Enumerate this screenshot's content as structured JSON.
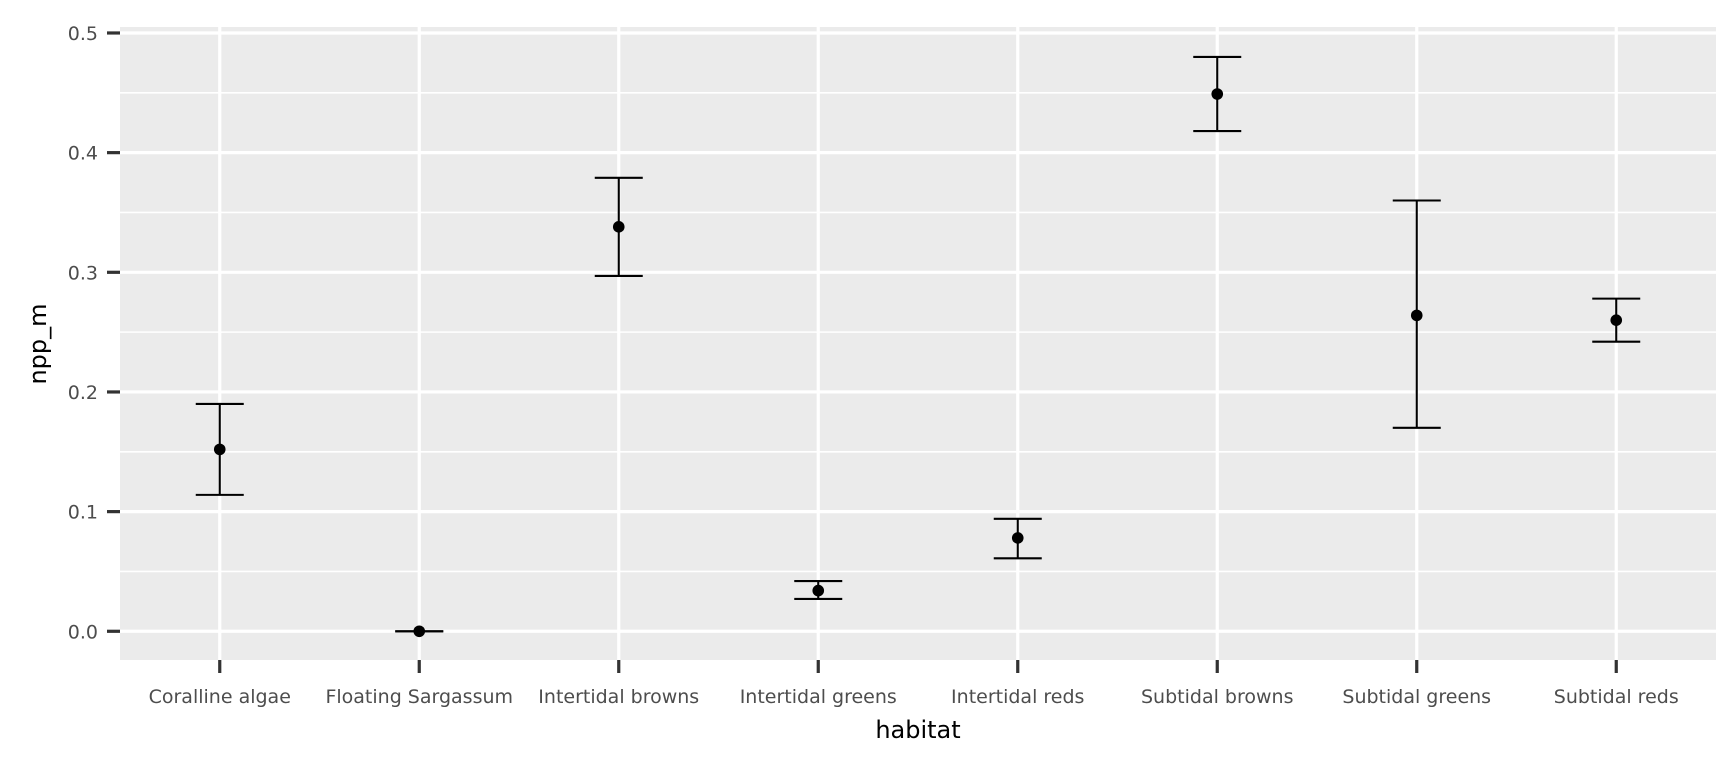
{
  "chart_data": {
    "type": "scatter",
    "xlabel": "habitat",
    "ylabel": "npp_m",
    "categories": [
      "Coralline algae",
      "Floating Sargassum",
      "Intertidal browns",
      "Intertidal greens",
      "Intertidal reds",
      "Subtidal browns",
      "Subtidal greens",
      "Subtidal reds"
    ],
    "points": [
      {
        "mean": 0.152,
        "lower": 0.114,
        "upper": 0.19
      },
      {
        "mean": 0.0,
        "lower": 0.0,
        "upper": 0.0
      },
      {
        "mean": 0.338,
        "lower": 0.297,
        "upper": 0.379
      },
      {
        "mean": 0.034,
        "lower": 0.027,
        "upper": 0.042
      },
      {
        "mean": 0.078,
        "lower": 0.061,
        "upper": 0.094
      },
      {
        "mean": 0.449,
        "lower": 0.418,
        "upper": 0.48
      },
      {
        "mean": 0.264,
        "lower": 0.17,
        "upper": 0.36
      },
      {
        "mean": 0.26,
        "lower": 0.242,
        "upper": 0.278
      }
    ],
    "ylim": [
      -0.024,
      0.505
    ],
    "yticks": [
      0.0,
      0.1,
      0.2,
      0.3,
      0.4,
      0.5
    ],
    "ytick_labels": [
      "0.0",
      "0.1",
      "0.2",
      "0.3",
      "0.4",
      "0.5"
    ],
    "grid": true,
    "colors": {
      "panel_background": "#ebebeb",
      "grid": "#ffffff",
      "marks": "#000000",
      "ticks": "#333333",
      "tick_labels": "#4d4d4d"
    }
  }
}
